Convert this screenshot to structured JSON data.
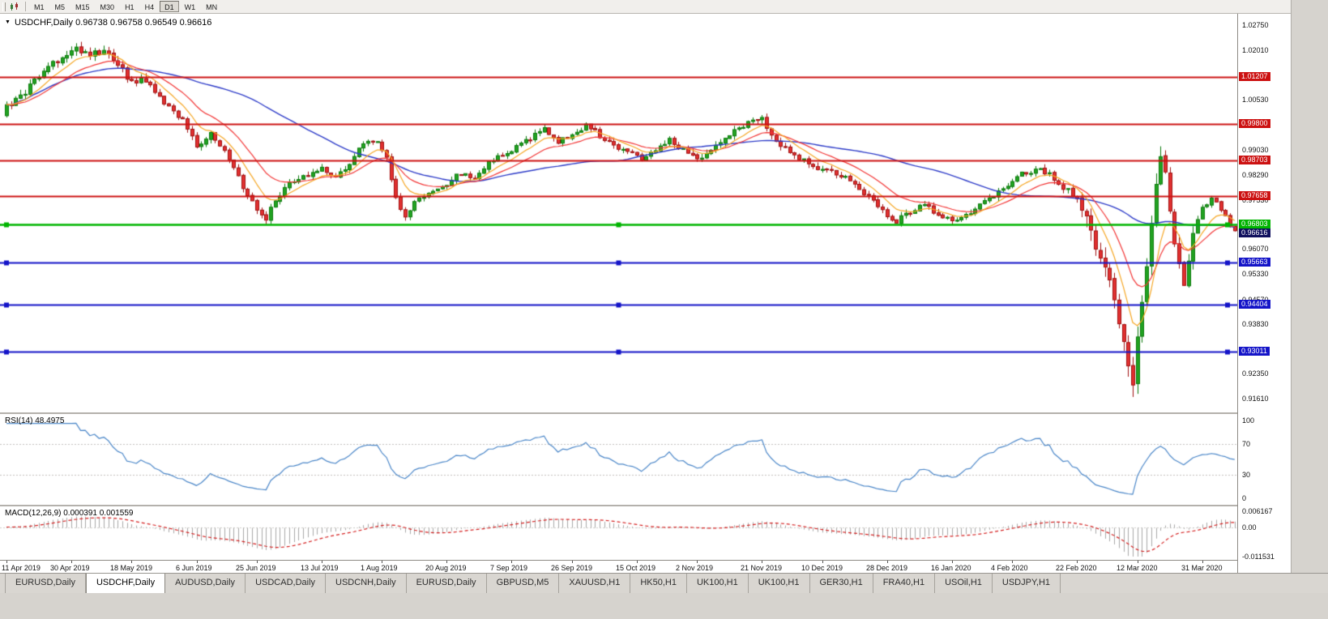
{
  "toolbar": {
    "timeframes": [
      {
        "label": "M1",
        "active": false
      },
      {
        "label": "M5",
        "active": false
      },
      {
        "label": "M15",
        "active": false
      },
      {
        "label": "M30",
        "active": false
      },
      {
        "label": "H1",
        "active": false
      },
      {
        "label": "H4",
        "active": false
      },
      {
        "label": "D1",
        "active": true
      },
      {
        "label": "W1",
        "active": false
      },
      {
        "label": "MN",
        "active": false
      }
    ]
  },
  "chart": {
    "header": "USDCHF,Daily 0.96738 0.96758 0.96549 0.96616"
  },
  "chart_data": {
    "type": "candlestick",
    "symbol": "USDCHF",
    "timeframe": "Daily",
    "ohlc": {
      "open": "0.96738",
      "high": "0.96758",
      "low": "0.96549",
      "close": "0.96616"
    },
    "y_axis": {
      "min": 0.9161,
      "max": 1.0275,
      "ticks": [
        "1.02750",
        "1.02010",
        "1.00530",
        "0.99030",
        "0.98290",
        "0.97530",
        "0.96070",
        "0.95330",
        "0.94570",
        "0.93830",
        "0.92350",
        "0.91610"
      ]
    },
    "x_axis": {
      "labels": [
        "11 Apr 2019",
        "30 Apr 2019",
        "18 May 2019",
        "6 Jun 2019",
        "25 Jun 2019",
        "13 Jul 2019",
        "1 Aug 2019",
        "20 Aug 2019",
        "7 Sep 2019",
        "26 Sep 2019",
        "15 Oct 2019",
        "2 Nov 2019",
        "21 Nov 2019",
        "10 Dec 2019",
        "28 Dec 2019",
        "16 Jan 2020",
        "4 Feb 2020",
        "22 Feb 2020",
        "12 Mar 2020",
        "31 Mar 2020"
      ],
      "label_days": [
        0,
        14,
        27,
        41,
        54,
        68,
        81,
        95,
        109,
        122,
        136,
        149,
        163,
        176,
        190,
        204,
        217,
        231,
        244,
        258
      ]
    },
    "horizontal_lines": [
      {
        "label": "1.01207",
        "price": 1.01207,
        "kind": "resistance",
        "handles": false
      },
      {
        "label": "0.99800",
        "price": 0.998,
        "kind": "resistance",
        "handles": false
      },
      {
        "label": "0.98703",
        "price": 0.98703,
        "kind": "resistance",
        "handles": false
      },
      {
        "label": "0.97658",
        "price": 0.97658,
        "kind": "resistance",
        "handles": false
      },
      {
        "label": "0.96803",
        "price": 0.96803,
        "kind": "key",
        "handles": true
      },
      {
        "label": "0.95663",
        "price": 0.95663,
        "kind": "support",
        "handles": true
      },
      {
        "label": "0.94404",
        "price": 0.94404,
        "kind": "support",
        "handles": true
      },
      {
        "label": "0.93011",
        "price": 0.93011,
        "kind": "support",
        "handles": true
      }
    ],
    "current_price": {
      "label": "0.96616",
      "value": 0.96616
    },
    "candle_count": 266,
    "close_waypoints": [
      [
        0,
        1.003
      ],
      [
        4,
        1.0075
      ],
      [
        8,
        1.014
      ],
      [
        12,
        1.018
      ],
      [
        15,
        1.0205
      ],
      [
        18,
        1.019
      ],
      [
        21,
        1.02
      ],
      [
        24,
        1.016
      ],
      [
        27,
        1.0105
      ],
      [
        30,
        1.011
      ],
      [
        34,
        1.004
      ],
      [
        38,
        0.999
      ],
      [
        41,
        0.9915
      ],
      [
        44,
        0.995
      ],
      [
        47,
        0.9905
      ],
      [
        51,
        0.979
      ],
      [
        54,
        0.972
      ],
      [
        56,
        0.97
      ],
      [
        58,
        0.9755
      ],
      [
        61,
        0.98
      ],
      [
        64,
        0.9825
      ],
      [
        68,
        0.9845
      ],
      [
        71,
        0.9815
      ],
      [
        74,
        0.9865
      ],
      [
        77,
        0.992
      ],
      [
        80,
        0.993
      ],
      [
        82,
        0.988
      ],
      [
        84,
        0.976
      ],
      [
        86,
        0.9705
      ],
      [
        88,
        0.9745
      ],
      [
        91,
        0.977
      ],
      [
        95,
        0.98
      ],
      [
        98,
        0.9835
      ],
      [
        101,
        0.9815
      ],
      [
        104,
        0.9865
      ],
      [
        107,
        0.9885
      ],
      [
        110,
        0.9915
      ],
      [
        113,
        0.994
      ],
      [
        116,
        0.9965
      ],
      [
        119,
        0.993
      ],
      [
        122,
        0.995
      ],
      [
        125,
        0.9975
      ],
      [
        128,
        0.9945
      ],
      [
        131,
        0.992
      ],
      [
        134,
        0.9895
      ],
      [
        137,
        0.9875
      ],
      [
        140,
        0.9905
      ],
      [
        143,
        0.993
      ],
      [
        146,
        0.99
      ],
      [
        149,
        0.987
      ],
      [
        152,
        0.9905
      ],
      [
        155,
        0.994
      ],
      [
        158,
        0.9965
      ],
      [
        161,
        0.999
      ],
      [
        163,
        0.9995
      ],
      [
        165,
        0.9945
      ],
      [
        168,
        0.9905
      ],
      [
        171,
        0.988
      ],
      [
        174,
        0.9855
      ],
      [
        177,
        0.984
      ],
      [
        180,
        0.9825
      ],
      [
        183,
        0.98
      ],
      [
        186,
        0.976
      ],
      [
        189,
        0.972
      ],
      [
        192,
        0.969
      ],
      [
        195,
        0.972
      ],
      [
        198,
        0.9745
      ],
      [
        201,
        0.9705
      ],
      [
        204,
        0.969
      ],
      [
        207,
        0.971
      ],
      [
        210,
        0.974
      ],
      [
        213,
        0.977
      ],
      [
        216,
        0.98
      ],
      [
        219,
        0.983
      ],
      [
        222,
        0.9845
      ],
      [
        225,
        0.983
      ],
      [
        228,
        0.979
      ],
      [
        231,
        0.976
      ],
      [
        233,
        0.97
      ],
      [
        235,
        0.962
      ],
      [
        237,
        0.954
      ],
      [
        239,
        0.945
      ],
      [
        241,
        0.933
      ],
      [
        243,
        0.9185
      ],
      [
        244,
        0.933
      ],
      [
        245,
        0.945
      ],
      [
        246,
        0.956
      ],
      [
        247,
        0.968
      ],
      [
        248,
        0.982
      ],
      [
        249,
        0.989
      ],
      [
        250,
        0.984
      ],
      [
        251,
        0.974
      ],
      [
        252,
        0.964
      ],
      [
        253,
        0.9545
      ],
      [
        254,
        0.95
      ],
      [
        255,
        0.959
      ],
      [
        256,
        0.9665
      ],
      [
        258,
        0.9725
      ],
      [
        260,
        0.9765
      ],
      [
        261,
        0.975
      ],
      [
        263,
        0.97
      ],
      [
        265,
        0.9662
      ]
    ],
    "moving_averages": [
      {
        "period": 8,
        "type": "ema",
        "color_key": "ma_fast"
      },
      {
        "period": 17,
        "type": "ema",
        "color_key": "ma_mid"
      },
      {
        "period": 50,
        "type": "sma",
        "color_key": "ma_slow"
      }
    ],
    "indicators": {
      "rsi": {
        "label": "RSI(14) 48.4975",
        "period": 14,
        "value": 48.4975,
        "levels": [
          "100",
          "70",
          "30",
          "0"
        ],
        "level_values": [
          100,
          70,
          30,
          0
        ]
      },
      "macd": {
        "label": "MACD(12,26,9) 0.000391 0.001559",
        "fast": 12,
        "slow": 26,
        "signal": 9,
        "values": [
          "0.000391",
          "0.001559"
        ],
        "scale_labels": [
          "0.006167",
          "0.00",
          "-0.011531"
        ],
        "scale_values": [
          0.006167,
          0,
          -0.011531
        ]
      }
    }
  },
  "colors": {
    "up_candle": "#22a322",
    "up_border": "#0b7a0b",
    "down_candle": "#e13030",
    "down_border": "#a01010",
    "ma_fast": "#f5a623",
    "ma_mid": "#f23535",
    "ma_slow": "#2e3cc8",
    "resistance": "#cc1111",
    "key": "#00b400",
    "support": "#1414c8",
    "current": "#10105e",
    "rsi_line": "#4a86c8",
    "macd_hist": "#a8a8a8",
    "macd_signal": "#d42020"
  },
  "tabs": {
    "items": [
      {
        "label": "EURUSD,Daily",
        "active": false
      },
      {
        "label": "USDCHF,Daily",
        "active": true
      },
      {
        "label": "AUDUSD,Daily",
        "active": false
      },
      {
        "label": "USDCAD,Daily",
        "active": false
      },
      {
        "label": "USDCNH,Daily",
        "active": false
      },
      {
        "label": "EURUSD,Daily",
        "active": false
      },
      {
        "label": "GBPUSD,M5",
        "active": false
      },
      {
        "label": "XAUUSD,H1",
        "active": false
      },
      {
        "label": "HK50,H1",
        "active": false
      },
      {
        "label": "UK100,H1",
        "active": false
      },
      {
        "label": "UK100,H1",
        "active": false
      },
      {
        "label": "GER30,H1",
        "active": false
      },
      {
        "label": "FRA40,H1",
        "active": false
      },
      {
        "label": "USOil,H1",
        "active": false
      },
      {
        "label": "USDJPY,H1",
        "active": false
      }
    ]
  }
}
